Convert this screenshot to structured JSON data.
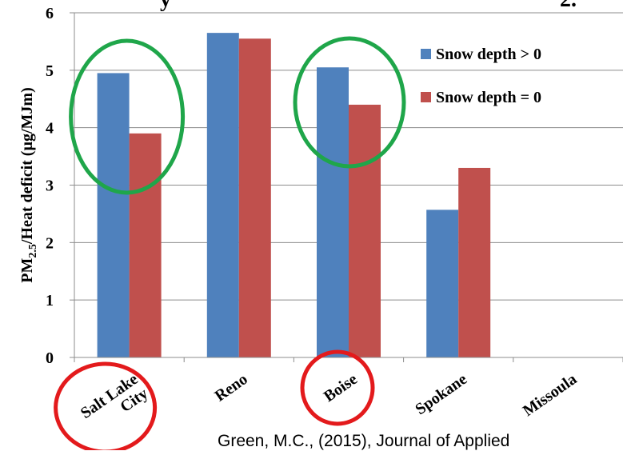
{
  "chart_data": {
    "type": "bar",
    "categories": [
      "Salt Lake City",
      "Reno",
      "Boise",
      "Spokane",
      "Missoula"
    ],
    "category_label_lines": [
      [
        "Salt Lake",
        "City"
      ],
      [
        "Reno"
      ],
      [
        "Boise"
      ],
      [
        "Spokane"
      ],
      [
        "Missoula"
      ]
    ],
    "series": [
      {
        "name": "Snow depth > 0",
        "values": [
          4.95,
          5.65,
          5.05,
          2.57,
          null
        ],
        "color": "#4f81bd"
      },
      {
        "name": "Snow depth = 0",
        "values": [
          3.9,
          5.55,
          4.4,
          3.3,
          null
        ],
        "color": "#c0504d"
      }
    ],
    "ylabel": "PM2.5/Heat deficit (µg/MJm)",
    "ylabel_parts": {
      "base": "PM",
      "sub": "2.5",
      "rest": "/Heat deficit (µg/MJm)"
    },
    "ylim": [
      0,
      6
    ],
    "yticks": [
      0,
      1,
      2,
      3,
      4,
      5,
      6
    ],
    "grid": true,
    "legend_position": "top-right",
    "annotations": [
      {
        "shape": "ellipse",
        "color": "#1fa64a",
        "category": "Salt Lake City"
      },
      {
        "shape": "ellipse",
        "color": "#1fa64a",
        "category": "Boise"
      },
      {
        "shape": "ellipse",
        "color": "#e31a1c",
        "category": "Salt Lake City",
        "target": "x-label"
      },
      {
        "shape": "ellipse",
        "color": "#e31a1c",
        "category": "Boise",
        "target": "x-label"
      }
    ]
  },
  "citation": "Green, M.C., (2015), Journal of Applied",
  "top_fragments": {
    "left": "y",
    "right": "2."
  }
}
